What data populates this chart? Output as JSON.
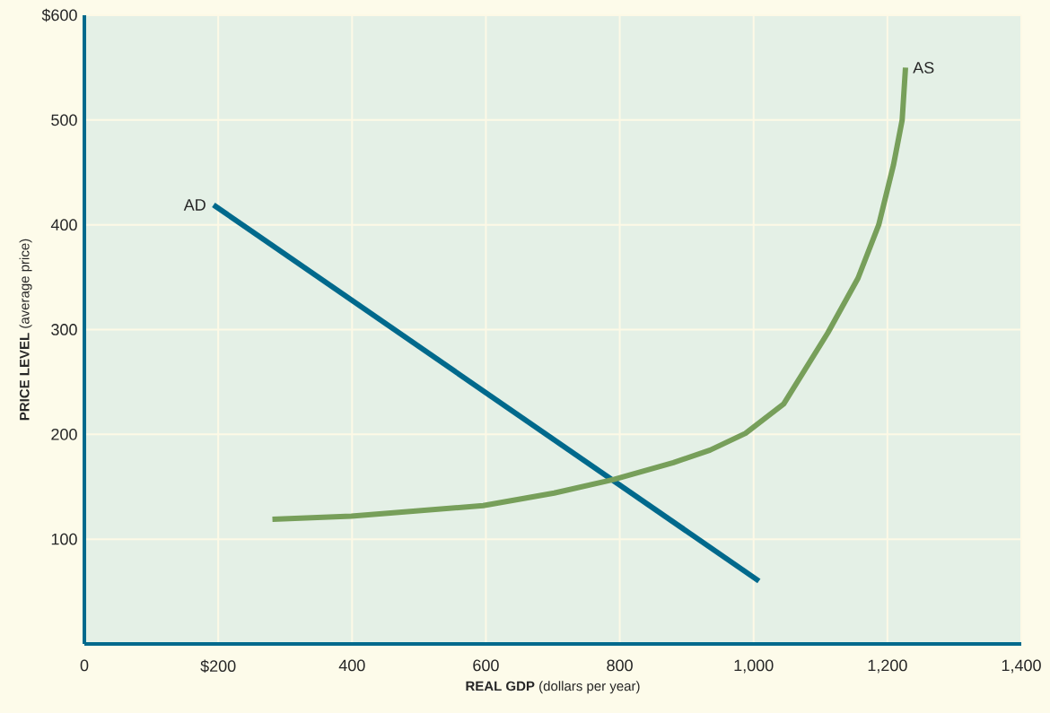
{
  "chart_data": {
    "type": "line",
    "xlabel": "**REAL GDP** (dollars per year)",
    "ylabel": "**PRICE LEVEL** (average price)",
    "xlim": [
      0,
      1400
    ],
    "ylim": [
      0,
      600
    ],
    "xticks": [
      0,
      {
        "value": 200,
        "label": "$200"
      },
      400,
      600,
      800,
      {
        "value": 1000,
        "label": "1,000"
      },
      {
        "value": 1200,
        "label": "1,200"
      },
      {
        "value": 1400,
        "label": "1,400"
      }
    ],
    "yticks": [
      100,
      200,
      300,
      400,
      500,
      {
        "value": 600,
        "label": "$600"
      }
    ],
    "grid": true,
    "series": [
      {
        "name": "AD",
        "color": "#00698c",
        "x": [
          193,
          1008
        ],
        "values": [
          419,
          60
        ]
      },
      {
        "name": "AS",
        "color": "#779f5a",
        "x": [
          281,
          399,
          596,
          702,
          791,
          880,
          935,
          988,
          1045,
          1111,
          1156,
          1187,
          1209,
          1222,
          1227
        ],
        "values": [
          119,
          122,
          132,
          144,
          157,
          173,
          185,
          201,
          229,
          297,
          349,
          400,
          457,
          500,
          550
        ]
      }
    ]
  }
}
